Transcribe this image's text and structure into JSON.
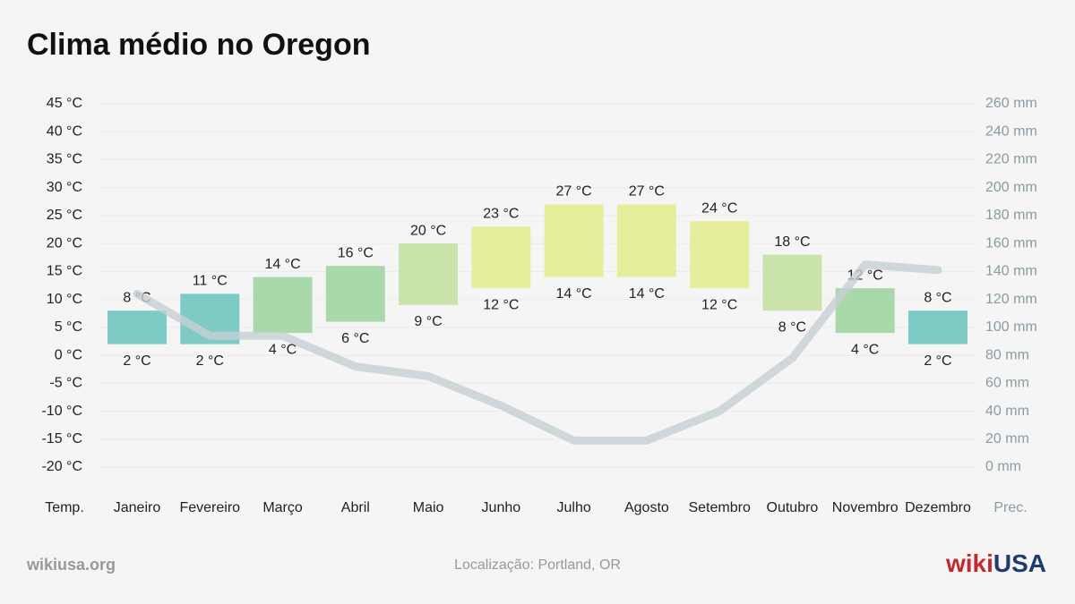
{
  "chart_data": {
    "type": "bar",
    "title": "Clima médio no Oregon",
    "categories": [
      "Janeiro",
      "Fevereiro",
      "Março",
      "Abril",
      "Maio",
      "Junho",
      "Julho",
      "Agosto",
      "Setembro",
      "Outubro",
      "Novembro",
      "Dezembro"
    ],
    "series": [
      {
        "type": "floating-bar",
        "low": [
          2,
          2,
          4,
          6,
          9,
          12,
          14,
          14,
          12,
          8,
          4,
          2
        ],
        "high": [
          8,
          11,
          14,
          16,
          20,
          23,
          27,
          27,
          24,
          18,
          12,
          8
        ],
        "low_value_labels": [
          "2 °C",
          "2 °C",
          "4 °C",
          "6 °C",
          "9 °C",
          "12 °C",
          "14 °C",
          "14 °C",
          "12 °C",
          "8 °C",
          "4 °C",
          "2 °C"
        ],
        "high_value_labels": [
          "8 °C",
          "11 °C",
          "14 °C",
          "16 °C",
          "20 °C",
          "23 °C",
          "27 °C",
          "27 °C",
          "24 °C",
          "18 °C",
          "12 °C",
          "8 °C"
        ],
        "colors": [
          "#7ecbc6",
          "#7ecbc6",
          "#a9d9aa",
          "#a9d9aa",
          "#c9e3aa",
          "#e6ee9c",
          "#e6ee9c",
          "#e6ee9c",
          "#e6ee9c",
          "#c9e3aa",
          "#a9d9aa",
          "#7ecbc6"
        ]
      },
      {
        "type": "line",
        "axis": "y2",
        "color": "#c6cfd3",
        "values": [
          124,
          94,
          94,
          72,
          65,
          44,
          19,
          19,
          40,
          78,
          145,
          141
        ]
      }
    ],
    "ylim": [
      -20,
      45
    ],
    "yticks": [
      {
        "value": -20,
        "label": "-20 °C"
      },
      {
        "value": -15,
        "label": "-15 °C"
      },
      {
        "value": -10,
        "label": "-10 °C"
      },
      {
        "value": -5,
        "label": "-5 °C"
      },
      {
        "value": 0,
        "label": "0 °C"
      },
      {
        "value": 5,
        "label": "5 °C"
      },
      {
        "value": 10,
        "label": "10 °C"
      },
      {
        "value": 15,
        "label": "15 °C"
      },
      {
        "value": 20,
        "label": "20 °C"
      },
      {
        "value": 25,
        "label": "25 °C"
      },
      {
        "value": 30,
        "label": "30 °C"
      },
      {
        "value": 35,
        "label": "35 °C"
      },
      {
        "value": 40,
        "label": "40 °C"
      },
      {
        "value": 45,
        "label": "45 °C"
      }
    ],
    "y2lim": [
      0,
      260
    ],
    "y2ticks": [
      {
        "value": 0,
        "label": "0 mm"
      },
      {
        "value": 20,
        "label": "20 mm"
      },
      {
        "value": 40,
        "label": "40 mm"
      },
      {
        "value": 60,
        "label": "60 mm"
      },
      {
        "value": 80,
        "label": "80 mm"
      },
      {
        "value": 100,
        "label": "100 mm"
      },
      {
        "value": 120,
        "label": "120 mm"
      },
      {
        "value": 140,
        "label": "140 mm"
      },
      {
        "value": 160,
        "label": "160 mm"
      },
      {
        "value": 180,
        "label": "180 mm"
      },
      {
        "value": 200,
        "label": "200 mm"
      },
      {
        "value": 220,
        "label": "220 mm"
      },
      {
        "value": 240,
        "label": "240 mm"
      },
      {
        "value": 260,
        "label": "260 mm"
      }
    ],
    "y_label": "Temp.",
    "y2_label": "Prec.",
    "grid": true
  },
  "footer": {
    "site": "wikiusa.org",
    "location": "Localização: Portland, OR",
    "logo_prefix": "wiki",
    "logo_suffix": "USA"
  }
}
